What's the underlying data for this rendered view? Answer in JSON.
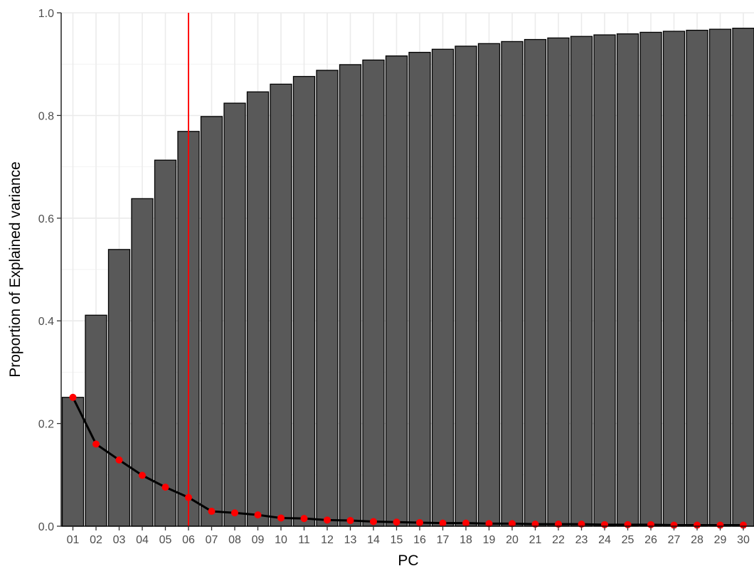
{
  "chart_data": {
    "type": "bar",
    "title": "",
    "xlabel": "PC",
    "ylabel": "Proportion of Explained variance",
    "ylim": [
      0,
      1
    ],
    "yticks": [
      0,
      0.2,
      0.4,
      0.6,
      0.8,
      1.0
    ],
    "ytick_labels": [
      "0.0",
      "0.2",
      "0.4",
      "0.6",
      "0.8",
      "1.0"
    ],
    "categories": [
      "01",
      "02",
      "03",
      "04",
      "05",
      "06",
      "07",
      "08",
      "09",
      "10",
      "11",
      "12",
      "13",
      "14",
      "15",
      "16",
      "17",
      "18",
      "19",
      "20",
      "21",
      "22",
      "23",
      "24",
      "25",
      "26",
      "27",
      "28",
      "29",
      "30"
    ],
    "series": [
      {
        "type": "bar",
        "values": [
          0.251,
          0.411,
          0.539,
          0.638,
          0.713,
          0.769,
          0.798,
          0.824,
          0.846,
          0.861,
          0.876,
          0.888,
          0.899,
          0.908,
          0.916,
          0.923,
          0.929,
          0.935,
          0.94,
          0.944,
          0.948,
          0.951,
          0.954,
          0.957,
          0.959,
          0.962,
          0.964,
          0.966,
          0.968,
          0.97
        ],
        "color": "#595959"
      },
      {
        "type": "line",
        "values": [
          0.251,
          0.16,
          0.129,
          0.099,
          0.076,
          0.056,
          0.029,
          0.026,
          0.022,
          0.016,
          0.015,
          0.012,
          0.011,
          0.009,
          0.008,
          0.007,
          0.006,
          0.006,
          0.005,
          0.005,
          0.004,
          0.004,
          0.004,
          0.003,
          0.003,
          0.003,
          0.002,
          0.002,
          0.002,
          0.002
        ],
        "line_color": "#000000",
        "point_color": "#ff0000"
      }
    ],
    "vline": {
      "category": "06",
      "color": "#ff0000"
    },
    "grid": true,
    "legend": "none"
  }
}
